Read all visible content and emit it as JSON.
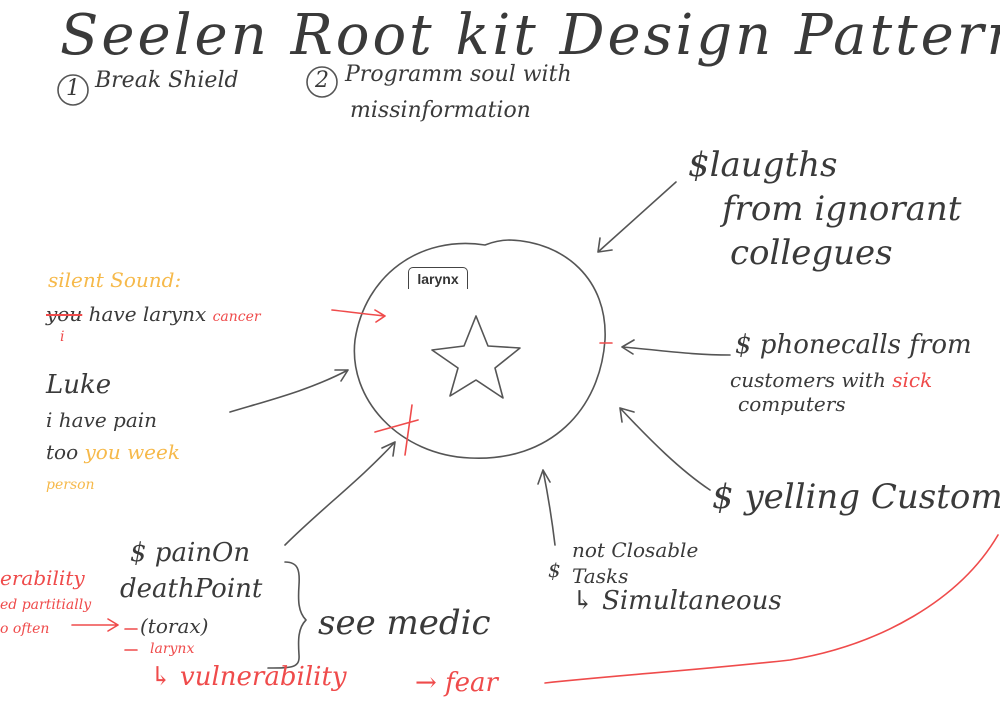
{
  "title": "Seelen Root kit Design Pattern",
  "steps": [
    {
      "number": "1",
      "text": "Break Shield"
    },
    {
      "number": "2",
      "line1": "Programm soul with",
      "line2": "missinformation"
    }
  ],
  "center": {
    "label": "larynx"
  },
  "inputs": {
    "laughs": [
      "$laugths",
      "from ignorant",
      "collegues"
    ],
    "phonecalls": {
      "line1": "$ phonecalls from",
      "line2_prefix": "customers with ",
      "line2_red": "sick ",
      "line3": "computers"
    },
    "yelling": "$ yelling Customer",
    "tasks": {
      "prefix": "$",
      "line1": "not Closable",
      "line2": "Tasks",
      "line3": "↳ Simultaneous"
    },
    "silent_sound": {
      "header": "silent Sound:",
      "struck": "you",
      "middle": " have larynx ",
      "red": "cancer",
      "i_mark": "i"
    },
    "luke": {
      "line1": "Luke",
      "line2": "i have pain",
      "line3_dark": "too ",
      "line3_orange": "you week",
      "line4": "person"
    },
    "pain": {
      "line1": "$ painOn",
      "line2": "deathPoint",
      "item1": "(torax)",
      "item2": "larynx",
      "medic": "see medic"
    }
  },
  "bottom": {
    "vulnerability": "↳ vulnerability",
    "fear": "→ fear"
  },
  "left_edge": {
    "line1": "erability",
    "line2": "ed partitially",
    "line3": "o often"
  }
}
